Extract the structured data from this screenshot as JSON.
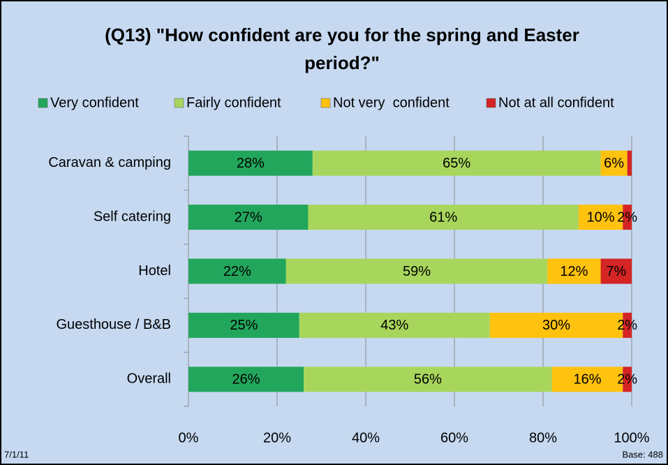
{
  "chart_data": {
    "type": "stacked-bar-horizontal",
    "title": "(Q13) \"How confident are you for the spring and Easter period?\"",
    "categories": [
      "Caravan & camping",
      "Self catering",
      "Hotel",
      "Guesthouse / B&B",
      "Overall"
    ],
    "series": [
      {
        "name": "Very confident",
        "color": "#22a65c",
        "values": [
          28,
          27,
          22,
          25,
          26
        ],
        "value_labels": [
          "28%",
          "27%",
          "22%",
          "25%",
          "26%"
        ]
      },
      {
        "name": "Fairly confident",
        "color": "#a8d65c",
        "values": [
          65,
          61,
          59,
          43,
          56
        ],
        "value_labels": [
          "65%",
          "61%",
          "59%",
          "43%",
          "56%"
        ]
      },
      {
        "name": "Not very  confident",
        "color": "#ffc20e",
        "values": [
          6,
          10,
          12,
          30,
          16
        ],
        "value_labels": [
          "6%",
          "10%",
          "12%",
          "30%",
          "16%"
        ]
      },
      {
        "name": "Not at all confident",
        "color": "#d42424",
        "values": [
          1,
          2,
          7,
          2,
          2
        ],
        "value_labels": [
          null,
          "2%",
          "7%",
          "2%",
          "2%"
        ]
      }
    ],
    "xlim": [
      0,
      100
    ],
    "xticks": [
      {
        "value": 0,
        "label": "0%"
      },
      {
        "value": 20,
        "label": "20%"
      },
      {
        "value": 40,
        "label": "40%"
      },
      {
        "value": 60,
        "label": "60%"
      },
      {
        "value": 80,
        "label": "80%"
      },
      {
        "value": 100,
        "label": "100%"
      }
    ],
    "grid": true,
    "legend": "top",
    "footer_left": "7/1/11",
    "footer_right": "Base: 488"
  }
}
